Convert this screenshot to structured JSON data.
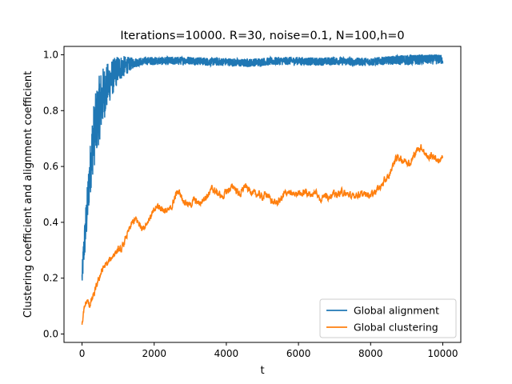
{
  "chart_data": {
    "type": "line",
    "title": "Iterations=10000. R=30, noise=0.1, N=100,h=0",
    "xlabel": "t",
    "ylabel": "Clustering coefficient and alignment coefficient",
    "xlim": [
      -500,
      10500
    ],
    "ylim": [
      -0.03,
      1.03
    ],
    "xticks": [
      0,
      2000,
      4000,
      6000,
      8000,
      10000
    ],
    "xtick_labels": [
      "0",
      "2000",
      "4000",
      "6000",
      "8000",
      "10000"
    ],
    "yticks": [
      0.0,
      0.2,
      0.4,
      0.6,
      0.8,
      1.0
    ],
    "ytick_labels": [
      "0.0",
      "0.2",
      "0.4",
      "0.6",
      "0.8",
      "1.0"
    ],
    "grid": false,
    "legend_position": "lower-right",
    "series": [
      {
        "name": "Global alignment",
        "color": "#1f77b4",
        "x": [
          0,
          50,
          100,
          150,
          200,
          250,
          300,
          400,
          500,
          600,
          700,
          800,
          900,
          1000,
          1200,
          1400,
          1600,
          1800,
          2000,
          2500,
          3000,
          3500,
          4000,
          4500,
          5000,
          5500,
          6000,
          6500,
          7000,
          7500,
          8000,
          8500,
          9000,
          9500,
          10000
        ],
        "y": [
          0.2,
          0.3,
          0.38,
          0.46,
          0.55,
          0.62,
          0.69,
          0.76,
          0.82,
          0.86,
          0.89,
          0.91,
          0.93,
          0.95,
          0.96,
          0.97,
          0.975,
          0.978,
          0.978,
          0.978,
          0.98,
          0.975,
          0.975,
          0.97,
          0.975,
          0.978,
          0.978,
          0.975,
          0.978,
          0.975,
          0.975,
          0.98,
          0.982,
          0.985,
          0.985
        ],
        "band": [
          0.04,
          0.06,
          0.08,
          0.08,
          0.09,
          0.1,
          0.12,
          0.12,
          0.12,
          0.1,
          0.08,
          0.07,
          0.06,
          0.05,
          0.035,
          0.02,
          0.015,
          0.015,
          0.015,
          0.015,
          0.015,
          0.015,
          0.015,
          0.015,
          0.015,
          0.015,
          0.015,
          0.015,
          0.015,
          0.015,
          0.015,
          0.015,
          0.02,
          0.02,
          0.02
        ]
      },
      {
        "name": "Global clustering",
        "color": "#ff7f0e",
        "x": [
          0,
          50,
          100,
          150,
          200,
          300,
          400,
          500,
          600,
          700,
          800,
          900,
          1000,
          1100,
          1200,
          1300,
          1400,
          1500,
          1600,
          1700,
          1800,
          1900,
          2000,
          2100,
          2200,
          2300,
          2400,
          2500,
          2600,
          2700,
          2800,
          2900,
          3000,
          3100,
          3200,
          3300,
          3400,
          3500,
          3600,
          3700,
          3800,
          3900,
          4000,
          4100,
          4200,
          4300,
          4400,
          4500,
          4600,
          4700,
          4800,
          4900,
          5000,
          5100,
          5200,
          5300,
          5400,
          5500,
          5600,
          5700,
          5800,
          5900,
          6000,
          6100,
          6200,
          6300,
          6400,
          6500,
          6600,
          6700,
          6800,
          6900,
          7000,
          7100,
          7200,
          7300,
          7400,
          7500,
          7600,
          7700,
          7800,
          7900,
          8000,
          8100,
          8200,
          8300,
          8400,
          8500,
          8600,
          8700,
          8800,
          8900,
          9000,
          9100,
          9200,
          9300,
          9400,
          9500,
          9600,
          9700,
          9800,
          9900,
          10000
        ],
        "y": [
          0.03,
          0.08,
          0.11,
          0.12,
          0.1,
          0.13,
          0.17,
          0.21,
          0.24,
          0.25,
          0.27,
          0.29,
          0.3,
          0.3,
          0.34,
          0.37,
          0.4,
          0.41,
          0.39,
          0.38,
          0.4,
          0.42,
          0.44,
          0.46,
          0.45,
          0.44,
          0.44,
          0.46,
          0.5,
          0.51,
          0.48,
          0.47,
          0.46,
          0.48,
          0.47,
          0.47,
          0.49,
          0.5,
          0.52,
          0.51,
          0.5,
          0.49,
          0.51,
          0.52,
          0.53,
          0.51,
          0.5,
          0.53,
          0.52,
          0.51,
          0.5,
          0.5,
          0.49,
          0.5,
          0.49,
          0.47,
          0.47,
          0.48,
          0.5,
          0.51,
          0.5,
          0.5,
          0.51,
          0.5,
          0.51,
          0.5,
          0.5,
          0.51,
          0.48,
          0.5,
          0.49,
          0.5,
          0.5,
          0.5,
          0.51,
          0.5,
          0.5,
          0.49,
          0.5,
          0.5,
          0.5,
          0.5,
          0.5,
          0.51,
          0.52,
          0.53,
          0.55,
          0.56,
          0.6,
          0.63,
          0.63,
          0.62,
          0.62,
          0.61,
          0.64,
          0.66,
          0.67,
          0.65,
          0.63,
          0.64,
          0.63,
          0.62,
          0.63
        ]
      }
    ]
  }
}
